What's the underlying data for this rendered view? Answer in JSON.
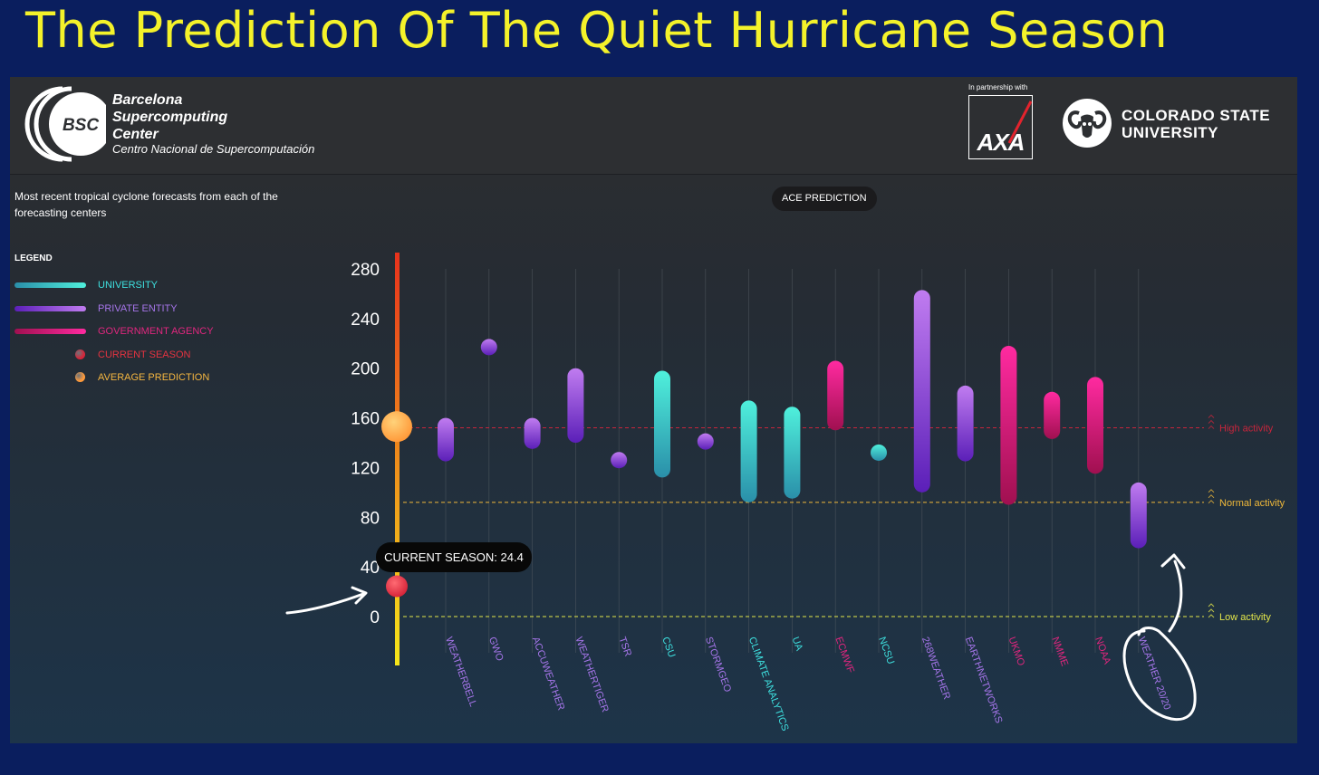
{
  "slide": {
    "title": "The Prediction Of The Quiet Hurricane Season"
  },
  "header": {
    "bsc_logo_text": "BSC",
    "bsc_name_lines": [
      "Barcelona",
      "Supercomputing",
      "Center"
    ],
    "bsc_subtitle": "Centro Nacional de Supercomputación",
    "partnership_note": "In partnership with",
    "axa_logo_text": "AXA",
    "csu_name_lines": [
      "COLORADO STATE",
      "UNIVERSITY"
    ]
  },
  "subtitle": "Most recent tropical cyclone forecasts from each of the forecasting centers",
  "ace_badge": "ACE PREDICTION",
  "legend": {
    "title": "LEGEND",
    "items": [
      {
        "label": "UNIVERSITY",
        "kind": "bar",
        "colors": [
          "#2a8fa9",
          "#4ff0dc"
        ],
        "text_color": "#3ee0df"
      },
      {
        "label": "PRIVATE ENTITY",
        "kind": "bar",
        "colors": [
          "#5b1fb8",
          "#c07cf0"
        ],
        "text_color": "#a675ea"
      },
      {
        "label": "GOVERNMENT AGENCY",
        "kind": "bar",
        "colors": [
          "#a01050",
          "#ff2aa0"
        ],
        "text_color": "#e0267e"
      },
      {
        "label": "CURRENT SEASON",
        "kind": "dot",
        "colors": [
          "#d6253a"
        ],
        "text_color": "#e53340"
      },
      {
        "label": "AVERAGE PREDICTION",
        "kind": "dot",
        "colors": [
          "#ff9a3a"
        ],
        "text_color": "#f5b640"
      }
    ]
  },
  "colors": {
    "university": [
      "#2a8fa9",
      "#4ff0dc"
    ],
    "private": [
      "#5b1fb8",
      "#c07cf0"
    ],
    "government": [
      "#a01050",
      "#ff2aa0"
    ],
    "label_university": "#3ee0df",
    "label_private": "#a675ea",
    "label_government": "#e0267e",
    "current_season": "#d6253a",
    "average_prediction": "#ff9a3a",
    "high_line": "#c8253c",
    "normal_line": "#f0b93a",
    "low_line": "#e3e64a"
  },
  "tooltip": "CURRENT SEASON: 24.4",
  "chart_data": {
    "type": "range-bar",
    "ylim": [
      0,
      280
    ],
    "y_ticks": [
      0,
      40,
      80,
      120,
      160,
      200,
      240,
      280
    ],
    "grid": true,
    "categories": [
      "WEATHERBELL",
      "GWO",
      "ACCUWEATHER",
      "WEATHERTIGER",
      "TSR",
      "CSU",
      "STORMGEO",
      "CLIMATE ANALYTICS",
      "UA",
      "ECMWF",
      "NCSU",
      "268WEATHER",
      "EARTHNETWORKS",
      "UKMO",
      "NMME",
      "NOAA",
      "WEATHER 20/20"
    ],
    "category_types": [
      "private",
      "private",
      "private",
      "private",
      "private",
      "university",
      "private",
      "university",
      "university",
      "government",
      "university",
      "private",
      "private",
      "government",
      "government",
      "government",
      "private"
    ],
    "ranges": [
      [
        125,
        160
      ],
      [
        217,
        217
      ],
      [
        135,
        160
      ],
      [
        140,
        200
      ],
      [
        126,
        126
      ],
      [
        112,
        198
      ],
      [
        141,
        141
      ],
      [
        92,
        174
      ],
      [
        95,
        169
      ],
      [
        150,
        206
      ],
      [
        132,
        132
      ],
      [
        100,
        263
      ],
      [
        125,
        186
      ],
      [
        90,
        218
      ],
      [
        143,
        181
      ],
      [
        115,
        193
      ],
      [
        55,
        108
      ]
    ],
    "current_season": 24.4,
    "average_prediction": 153,
    "thresholds": [
      {
        "label": "High activity",
        "value": 152
      },
      {
        "label": "Normal activity",
        "value": 92
      },
      {
        "label": "Low activity",
        "value": 0
      }
    ]
  }
}
